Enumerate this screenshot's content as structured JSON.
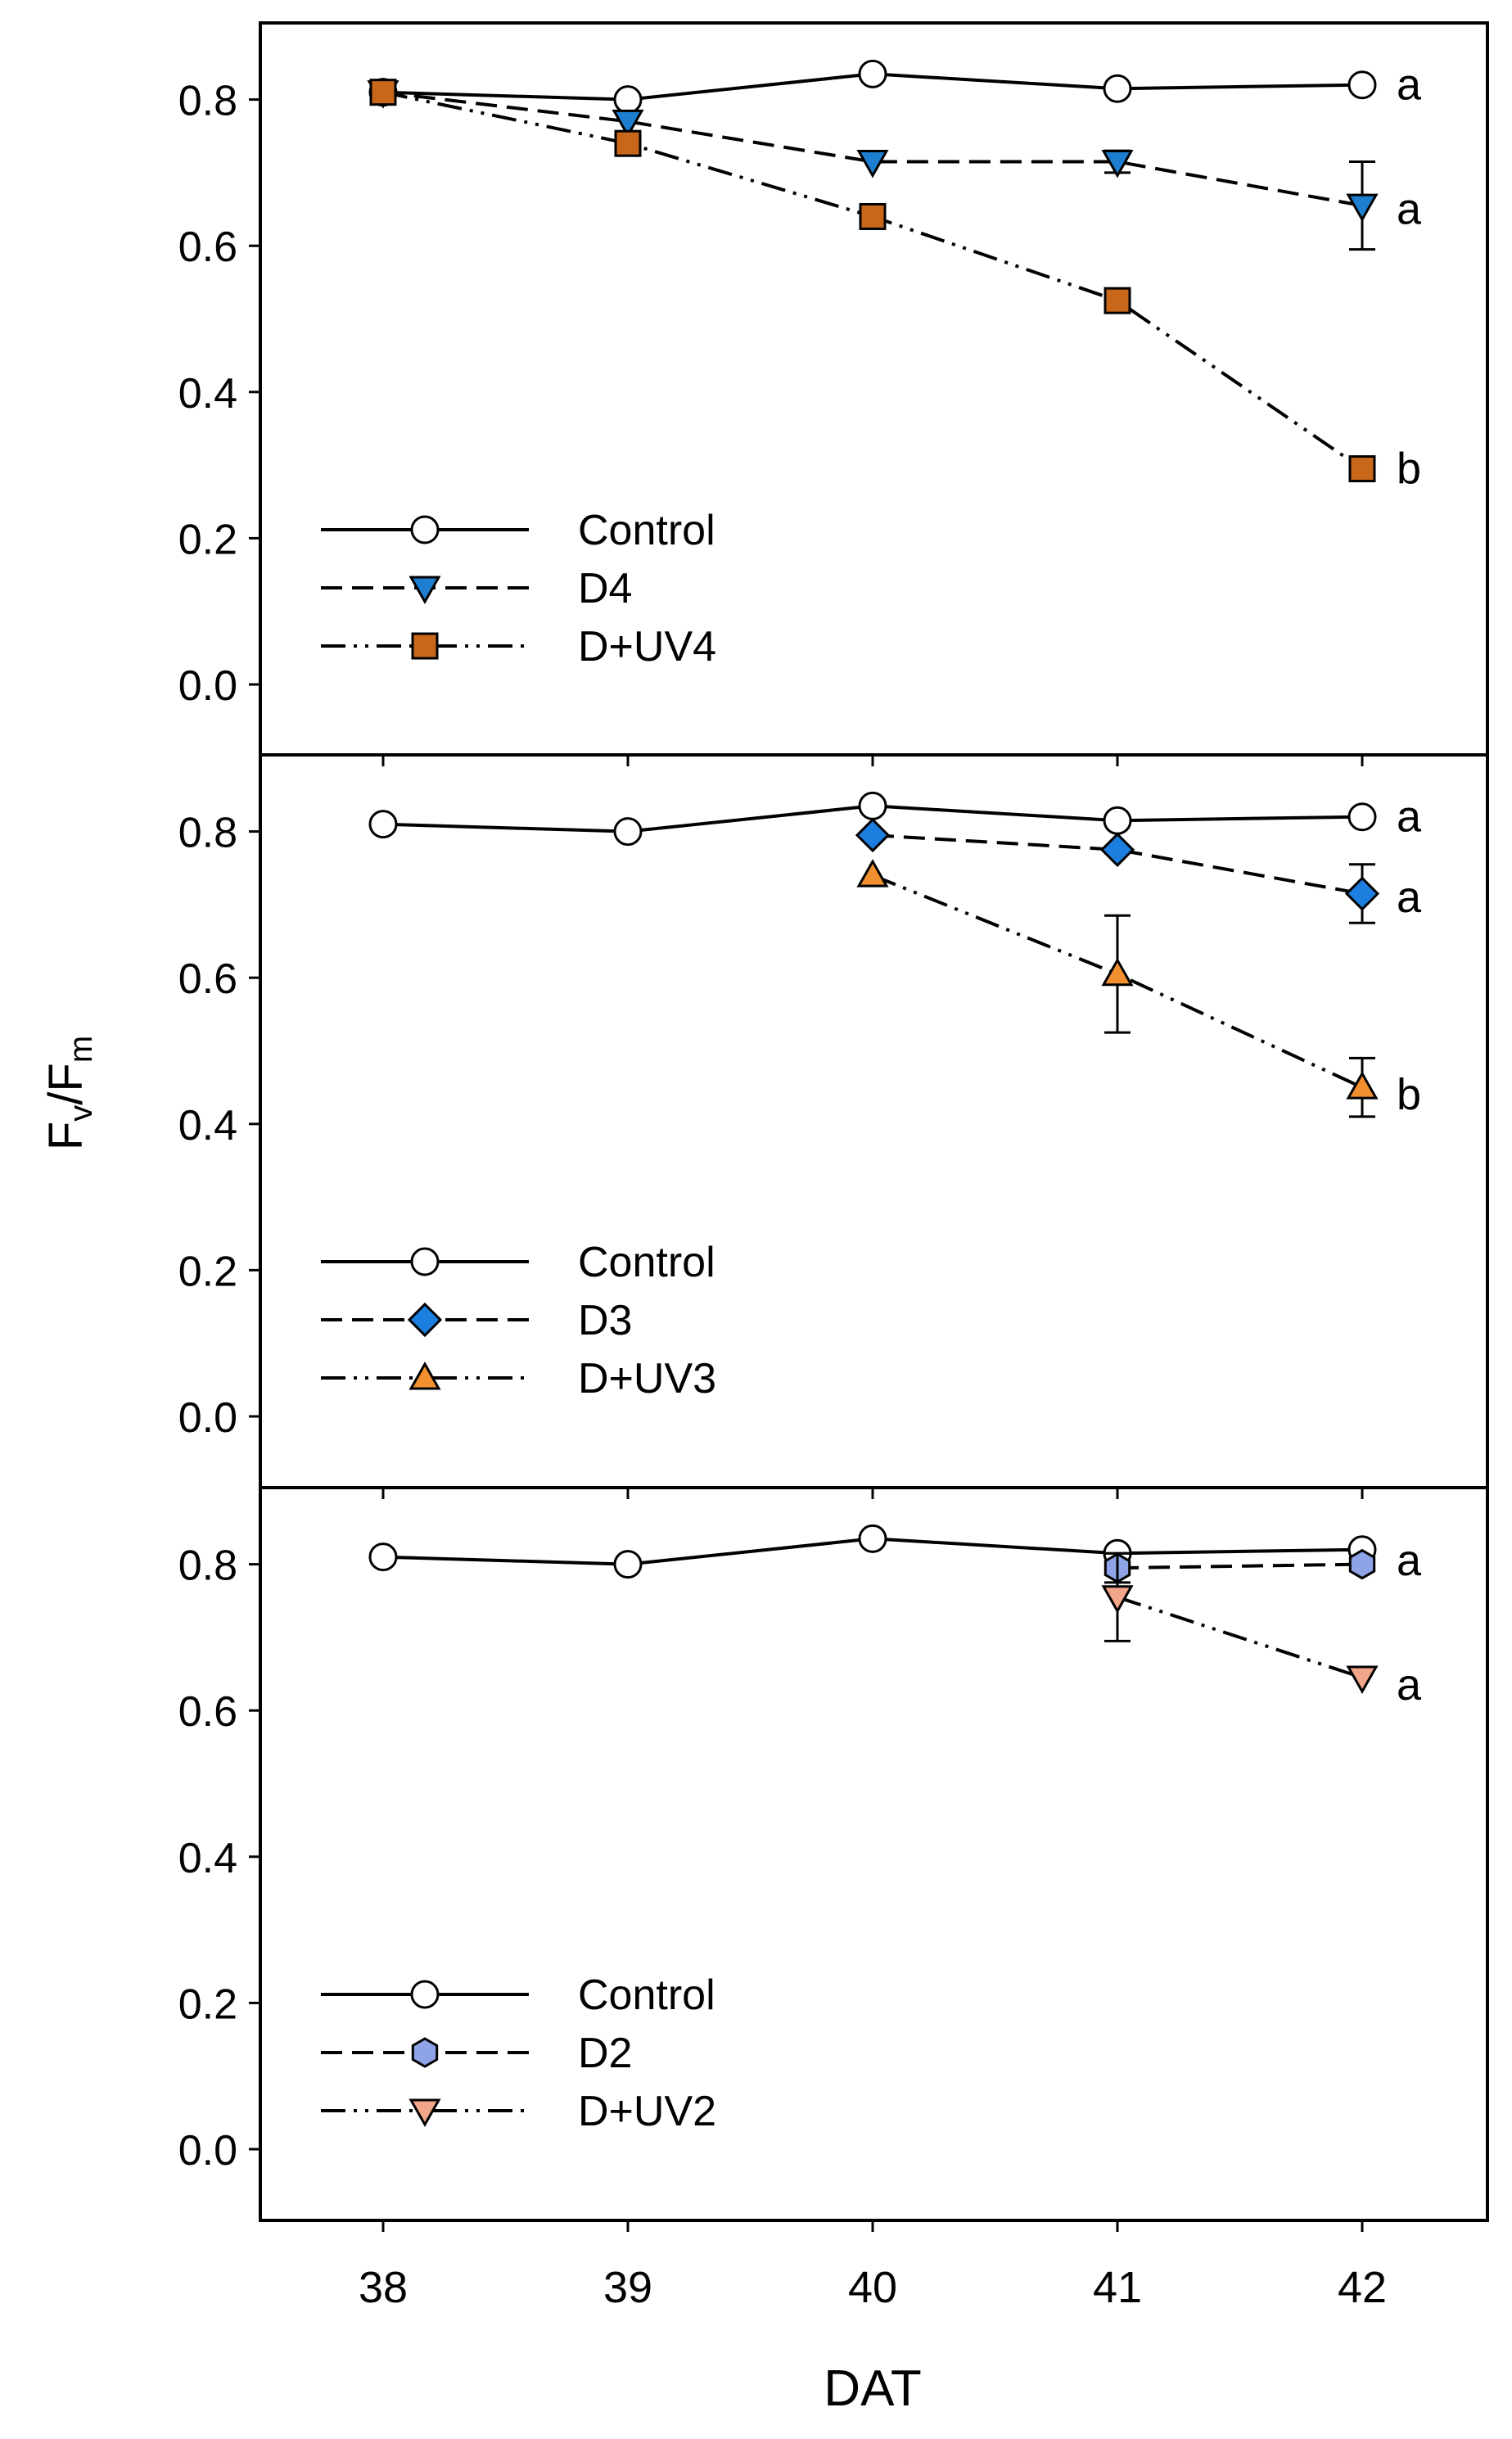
{
  "chart_data": {
    "type": "line",
    "ylabel": {
      "main": "F",
      "sub1": "v",
      "sep": "/F",
      "sub2": "m"
    },
    "xlabel": "DAT",
    "x_ticks": [
      "38",
      "39",
      "40",
      "41",
      "42"
    ],
    "y_ticks": [
      "0.0",
      "0.2",
      "0.4",
      "0.6",
      "0.8"
    ],
    "xlim": [
      37.5,
      42.5
    ],
    "ylim": [
      -0.05,
      0.9
    ],
    "legend_position": "bottom-left",
    "panels": [
      {
        "series": [
          {
            "name": "Control",
            "marker": "circle",
            "dash": "solid",
            "fill": "#ffffff",
            "x": [
              38,
              39,
              40,
              41,
              42
            ],
            "y": [
              0.81,
              0.8,
              0.835,
              0.815,
              0.82
            ],
            "err": [
              0,
              0,
              0,
              0,
              0
            ]
          },
          {
            "name": "D4",
            "marker": "triangle-down",
            "dash": "dashed",
            "fill": "#1e7fd0",
            "x": [
              38,
              39,
              40,
              41,
              42
            ],
            "y": [
              0.81,
              0.77,
              0.715,
              0.715,
              0.655
            ],
            "err": [
              0,
              0,
              0,
              0.015,
              0.06
            ]
          },
          {
            "name": "D+UV4",
            "marker": "square",
            "dash": "dashdotdot",
            "fill": "#c8661a",
            "x": [
              38,
              39,
              40,
              41,
              42
            ],
            "y": [
              0.81,
              0.74,
              0.64,
              0.525,
              0.295
            ],
            "err": [
              0,
              0,
              0,
              0.015,
              0
            ]
          }
        ],
        "letters": [
          {
            "x": 42,
            "y": 0.82,
            "text": "a"
          },
          {
            "x": 42,
            "y": 0.65,
            "text": "a"
          },
          {
            "x": 42,
            "y": 0.295,
            "text": "b"
          }
        ]
      },
      {
        "series": [
          {
            "name": "Control",
            "marker": "circle",
            "dash": "solid",
            "fill": "#ffffff",
            "x": [
              38,
              39,
              40,
              41,
              42
            ],
            "y": [
              0.81,
              0.8,
              0.835,
              0.815,
              0.82
            ],
            "err": [
              0,
              0,
              0,
              0,
              0
            ]
          },
          {
            "name": "D3",
            "marker": "diamond",
            "dash": "dashed",
            "fill": "#1c7fe0",
            "x": [
              40,
              41,
              42
            ],
            "y": [
              0.795,
              0.775,
              0.715
            ],
            "err": [
              0,
              0,
              0.04
            ]
          },
          {
            "name": "D+UV3",
            "marker": "triangle-up",
            "dash": "dashdotdot",
            "fill": "#f0902e",
            "x": [
              40,
              41,
              42
            ],
            "y": [
              0.74,
              0.605,
              0.45
            ],
            "err": [
              0,
              0.08,
              0.04
            ]
          }
        ],
        "letters": [
          {
            "x": 42,
            "y": 0.82,
            "text": "a"
          },
          {
            "x": 42,
            "y": 0.71,
            "text": "a"
          },
          {
            "x": 42,
            "y": 0.44,
            "text": "b"
          }
        ]
      },
      {
        "series": [
          {
            "name": "Control",
            "marker": "circle",
            "dash": "solid",
            "fill": "#ffffff",
            "x": [
              38,
              39,
              40,
              41,
              42
            ],
            "y": [
              0.81,
              0.8,
              0.835,
              0.815,
              0.82
            ],
            "err": [
              0,
              0,
              0,
              0,
              0
            ]
          },
          {
            "name": "D2",
            "marker": "hexagon",
            "dash": "dashed",
            "fill": "#8fa3e8",
            "x": [
              41,
              42
            ],
            "y": [
              0.795,
              0.8
            ],
            "err": [
              0.02,
              0
            ]
          },
          {
            "name": "D+UV2",
            "marker": "triangle-down",
            "dash": "dashdotdot",
            "fill": "#f2a68a",
            "x": [
              41,
              42
            ],
            "y": [
              0.755,
              0.645
            ],
            "err": [
              0.06,
              0
            ]
          }
        ],
        "letters": [
          {
            "x": 42,
            "y": 0.805,
            "text": "a"
          },
          {
            "x": 42,
            "y": 0.635,
            "text": "a"
          }
        ]
      }
    ]
  }
}
